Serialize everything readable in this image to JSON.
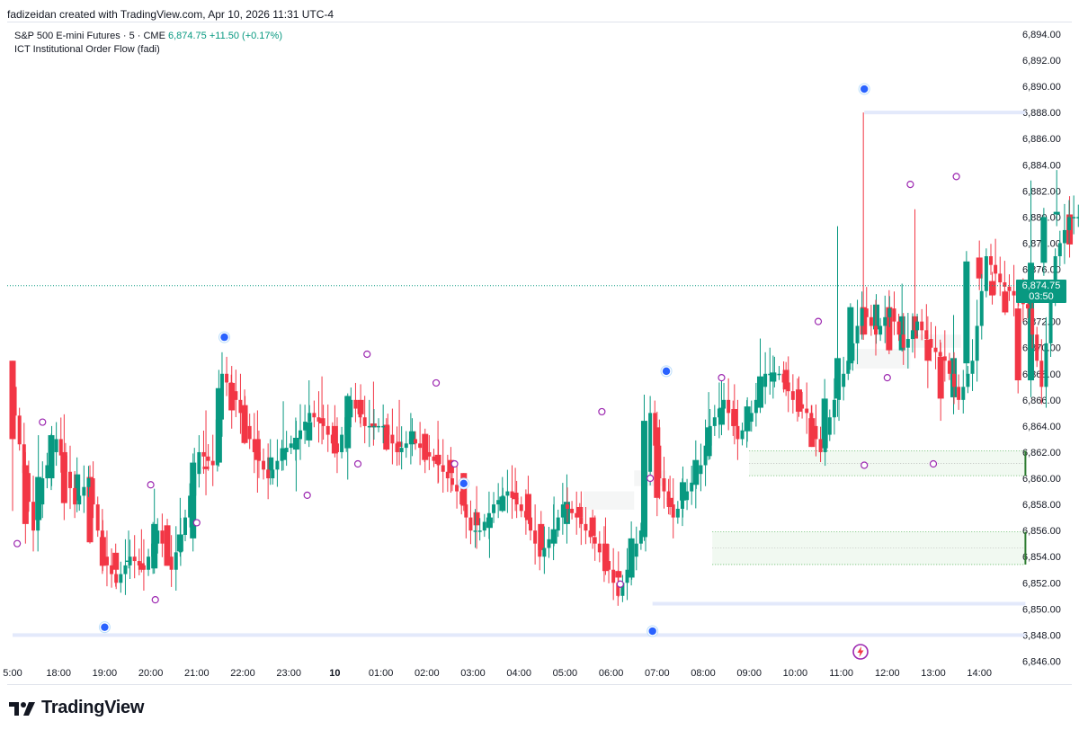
{
  "header": {
    "credit": "fadizeidan created with TradingView.com, Apr 10, 2026 11:31 UTC-4"
  },
  "legend": {
    "symbol": "S&P 500 E-mini Futures · 5 · CME",
    "last": "6,874.75",
    "change": "+11.50 (+0.17%)",
    "indicator": "ICT Institutional Order Flow (fadi)"
  },
  "price_tag": {
    "price": "6,874.75",
    "countdown": "03:50"
  },
  "brand": {
    "name": "TradingView"
  },
  "colors": {
    "up": "#089981",
    "down": "#f23645",
    "swing": "#9c27b0",
    "pivot": "#2962ff",
    "level": "#e3e9fb",
    "fvg": "#4caf50"
  },
  "icons": {
    "brand": "tradingview-logo-icon",
    "bolt": "lightning-icon"
  },
  "chart_data": {
    "type": "candlestick",
    "interval": "5",
    "y_ticks": [
      "6,894.00",
      "6,892.00",
      "6,890.00",
      "6,888.00",
      "6,886.00",
      "6,884.00",
      "6,882.00",
      "6,880.00",
      "6,878.00",
      "6,876.00",
      "6,874.00",
      "6,872.00",
      "6,870.00",
      "6,868.00",
      "6,866.00",
      "6,864.00",
      "6,862.00",
      "6,860.00",
      "6,858.00",
      "6,856.00",
      "6,854.00",
      "6,852.00",
      "6,850.00",
      "6,848.00",
      "6,846.00"
    ],
    "x_ticks": [
      "5:00",
      "18:00",
      "19:00",
      "20:00",
      "21:00",
      "22:00",
      "23:00",
      "10",
      "01:00",
      "02:00",
      "03:00",
      "04:00",
      "05:00",
      "06:00",
      "07:00",
      "08:00",
      "09:00",
      "10:00",
      "11:00",
      "12:00",
      "13:00",
      "14:00"
    ],
    "y_range": [
      6846,
      6895
    ],
    "last_price": 6874.75,
    "path": [
      [
        17.0,
        6867
      ],
      [
        17.5,
        6856
      ],
      [
        17.7,
        6860
      ],
      [
        18.0,
        6863
      ],
      [
        18.4,
        6858
      ],
      [
        18.7,
        6860
      ],
      [
        19.0,
        6854
      ],
      [
        19.3,
        6852
      ],
      [
        19.6,
        6854
      ],
      [
        19.9,
        6853
      ],
      [
        20.2,
        6856
      ],
      [
        20.5,
        6853
      ],
      [
        20.8,
        6857
      ],
      [
        21.1,
        6862
      ],
      [
        21.4,
        6861
      ],
      [
        21.6,
        6868
      ],
      [
        21.9,
        6866
      ],
      [
        22.1,
        6864
      ],
      [
        22.3,
        6862
      ],
      [
        22.6,
        6860
      ],
      [
        22.9,
        6862
      ],
      [
        23.2,
        6863
      ],
      [
        23.5,
        6865
      ],
      [
        23.8,
        6864
      ],
      [
        24.1,
        6862
      ],
      [
        24.4,
        6866
      ],
      [
        24.7,
        6864
      ],
      [
        25.1,
        6864
      ],
      [
        25.4,
        6862
      ],
      [
        25.7,
        6863
      ],
      [
        26.0,
        6862
      ],
      [
        26.3,
        6861
      ],
      [
        26.7,
        6859
      ],
      [
        27.0,
        6856
      ],
      [
        27.2,
        6856
      ],
      [
        27.5,
        6858
      ],
      [
        27.8,
        6859
      ],
      [
        28.2,
        6857
      ],
      [
        28.5,
        6854
      ],
      [
        28.8,
        6856
      ],
      [
        29.0,
        6858
      ],
      [
        29.3,
        6857
      ],
      [
        29.7,
        6855
      ],
      [
        30.0,
        6853
      ],
      [
        30.2,
        6851
      ],
      [
        30.5,
        6854
      ],
      [
        30.7,
        6856
      ],
      [
        30.9,
        6865
      ],
      [
        31.1,
        6860
      ],
      [
        31.4,
        6857
      ],
      [
        31.7,
        6859
      ],
      [
        32.0,
        6861
      ],
      [
        32.2,
        6864
      ],
      [
        32.5,
        6866
      ],
      [
        32.8,
        6863
      ],
      [
        33.1,
        6865
      ],
      [
        33.4,
        6868
      ],
      [
        33.7,
        6868
      ],
      [
        34.0,
        6866
      ],
      [
        34.3,
        6865
      ],
      [
        34.6,
        6862
      ],
      [
        34.9,
        6866
      ],
      [
        35.2,
        6869
      ],
      [
        35.5,
        6873
      ],
      [
        35.8,
        6871
      ],
      [
        36.1,
        6873
      ],
      [
        36.4,
        6870
      ],
      [
        36.7,
        6872
      ],
      [
        37.0,
        6870
      ],
      [
        37.3,
        6869
      ],
      [
        37.6,
        6866
      ],
      [
        37.9,
        6869
      ],
      [
        38.2,
        6877
      ],
      [
        38.5,
        6875
      ],
      [
        38.8,
        6874
      ],
      [
        39.1,
        6873
      ],
      [
        39.4,
        6867
      ],
      [
        39.7,
        6877
      ],
      [
        40.0,
        6880
      ],
      [
        40.3,
        6880
      ],
      [
        40.6,
        6875
      ]
    ],
    "candles": [
      [
        17.0,
        6869.0,
        6863.0,
        6857.5,
        6869.0
      ],
      [
        17.28,
        6861.0,
        6856.5,
        6855.0,
        6862.0
      ],
      [
        17.56,
        6856.8,
        6860.1,
        6856.1,
        6863.3
      ],
      [
        17.84,
        6860.0,
        6863.3,
        6859.1,
        6863.4
      ],
      [
        18.12,
        6862.0,
        6858.1,
        6856.8,
        6864.9
      ],
      [
        18.4,
        6858.3,
        6860.3,
        6857.4,
        6861.6
      ],
      [
        18.68,
        6860.1,
        6855.1,
        6855.0,
        6861.0
      ],
      [
        18.96,
        6855.5,
        6853.3,
        6852.9,
        6856.8
      ],
      [
        19.24,
        6854.3,
        6853.0,
        6851.7,
        6855.0
      ],
      [
        19.52,
        6853.6,
        6853.7,
        6853.1,
        6856.0
      ],
      [
        19.8,
        6853.5,
        6853.0,
        6852.8,
        6856.1
      ],
      [
        20.08,
        6853.1,
        6856.5,
        6852.7,
        6859.2
      ],
      [
        20.36,
        6856.4,
        6853.3,
        6853.3,
        6856.9
      ],
      [
        20.64,
        6854.4,
        6855.7,
        6854.0,
        6858.5
      ],
      [
        20.92,
        6855.4,
        6861.2,
        6854.4,
        6861.9
      ],
      [
        21.2,
        6860.9,
        6860.7,
        6858.7,
        6865.2
      ],
      [
        21.48,
        6861.2,
        6866.9,
        6860.9,
        6868.3
      ],
      [
        21.76,
        6867.3,
        6865.2,
        6863.8,
        6868.6
      ],
      [
        22.04,
        6865.6,
        6862.7,
        6862.6,
        6866.8
      ],
      [
        22.32,
        6863.0,
        6861.4,
        6858.9,
        6865.2
      ],
      [
        22.6,
        6860.6,
        6861.6,
        6859.5,
        6863.0
      ],
      [
        22.88,
        6861.4,
        6862.3,
        6860.6,
        6865.9
      ],
      [
        23.16,
        6862.2,
        6863.1,
        6859.0,
        6864.4
      ],
      [
        23.44,
        6862.9,
        6864.3,
        6862.4,
        6867.5
      ],
      [
        23.72,
        6864.6,
        6864.2,
        6862.6,
        6867.8
      ],
      [
        24.0,
        6864.0,
        6861.9,
        6861.6,
        6865.6
      ],
      [
        24.28,
        6862.3,
        6866.3,
        6859.9,
        6866.5
      ],
      [
        24.56,
        6866.0,
        6864.9,
        6863.9,
        6867.2
      ],
      [
        24.84,
        6864.2,
        6863.9,
        6862.5,
        6867.4
      ],
      [
        25.12,
        6864.1,
        6862.2,
        6862.1,
        6864.6
      ],
      [
        25.4,
        6862.8,
        6862.4,
        6861.0,
        6866.0
      ],
      [
        25.68,
        6862.6,
        6863.6,
        6861.7,
        6864.6
      ],
      [
        25.96,
        6863.4,
        6861.4,
        6860.4,
        6863.8
      ],
      [
        26.24,
        6861.8,
        6861.1,
        6859.6,
        6864.4
      ],
      [
        26.52,
        6861.4,
        6860.4,
        6858.9,
        6862.4
      ],
      [
        26.8,
        6860.4,
        6857.9,
        6857.5,
        6860.4
      ],
      [
        27.08,
        6857.4,
        6856.4,
        6854.6,
        6859.4
      ],
      [
        27.36,
        6856.2,
        6857.0,
        6853.9,
        6857.1
      ],
      [
        27.64,
        6857.5,
        6858.6,
        6857.4,
        6860.1
      ],
      [
        27.92,
        6858.9,
        6858.4,
        6857.5,
        6860.8
      ],
      [
        28.2,
        6858.8,
        6856.8,
        6856.5,
        6860.2
      ],
      [
        28.48,
        6856.5,
        6854.5,
        6854.1,
        6857.5
      ],
      [
        28.76,
        6855.0,
        6856.1,
        6854.8,
        6858.6
      ],
      [
        29.04,
        6856.5,
        6858.2,
        6855.0,
        6860.3
      ],
      [
        29.32,
        6857.8,
        6857.0,
        6856.2,
        6858.1
      ],
      [
        29.6,
        6857.0,
        6855.6,
        6854.6,
        6857.6
      ],
      [
        29.88,
        6855.0,
        6852.9,
        6852.6,
        6857.0
      ],
      [
        30.16,
        6852.9,
        6852.4,
        6850.9,
        6854.4
      ],
      [
        30.44,
        6852.4,
        6855.4,
        6851.8,
        6856.7
      ],
      [
        30.72,
        6855.5,
        6864.4,
        6855.2,
        6866.4
      ],
      [
        31.0,
        6863.9,
        6858.5,
        6857.1,
        6865.1
      ],
      [
        31.28,
        6858.5,
        6857.8,
        6857.2,
        6860.2
      ],
      [
        31.56,
        6858.3,
        6859.7,
        6857.0,
        6860.9
      ],
      [
        31.84,
        6859.5,
        6861.4,
        6857.7,
        6862.9
      ],
      [
        32.12,
        6861.7,
        6863.9,
        6861.4,
        6866.6
      ],
      [
        32.4,
        6864.1,
        6865.4,
        6863.3,
        6867.6
      ],
      [
        32.68,
        6865.3,
        6864.0,
        6862.6,
        6867.2
      ],
      [
        32.96,
        6863.6,
        6865.5,
        6862.8,
        6866.2
      ],
      [
        33.24,
        6865.4,
        6867.8,
        6865.0,
        6870.7
      ],
      [
        33.52,
        6867.4,
        6868.1,
        6866.1,
        6869.4
      ],
      [
        33.8,
        6868.3,
        6866.8,
        6866.3,
        6868.9
      ],
      [
        34.08,
        6866.8,
        6865.1,
        6864.7,
        6867.8
      ],
      [
        34.36,
        6864.6,
        6862.4,
        6862.4,
        6865.6
      ],
      [
        34.64,
        6862.3,
        6866.1,
        6862.2,
        6867.6
      ],
      [
        34.92,
        6866.1,
        6869.2,
        6864.7,
        6879.3
      ],
      [
        35.2,
        6868.8,
        6873.1,
        6868.3,
        6873.4
      ],
      [
        35.48,
        6873.1,
        6871.0,
        6870.6,
        6888.0
      ],
      [
        35.76,
        6871.4,
        6873.3,
        6870.3,
        6874.1
      ],
      [
        36.04,
        6873.1,
        6869.8,
        6869.5,
        6874.4
      ],
      [
        36.32,
        6869.8,
        6872.4,
        6869.7,
        6874.9
      ],
      [
        36.6,
        6872.4,
        6870.7,
        6869.2,
        6880.6
      ],
      [
        36.88,
        6870.6,
        6869.0,
        6866.9,
        6872.4
      ],
      [
        37.16,
        6869.3,
        6866.1,
        6864.4,
        6870.4
      ],
      [
        37.44,
        6866.2,
        6869.2,
        6864.9,
        6872.5
      ],
      [
        37.72,
        6868.8,
        6876.6,
        6867.8,
        6877.4
      ],
      [
        38.0,
        6876.9,
        6875.3,
        6874.4,
        6878.2
      ],
      [
        38.28,
        6875.1,
        6874.0,
        6873.3,
        6875.8
      ],
      [
        38.56,
        6874.3,
        6872.7,
        6872.5,
        6874.4
      ],
      [
        38.84,
        6873.0,
        6867.5,
        6866.5,
        6873.6
      ],
      [
        39.12,
        6867.5,
        6876.5,
        6866.2,
        6882.8
      ],
      [
        39.4,
        6876.5,
        6880.0,
        6875.5,
        6880.7
      ],
      [
        39.68,
        6880.2,
        6880.4,
        6879.3,
        6883.6
      ],
      [
        39.96,
        6880.2,
        6877.9,
        6876.9,
        6881.6
      ],
      [
        40.24,
        6877.7,
        6874.9,
        6873.9,
        6878.6
      ]
    ],
    "pivots_major": [
      {
        "t": 19.0,
        "price": 6848.6
      },
      {
        "t": 21.6,
        "price": 6870.8
      },
      {
        "t": 26.8,
        "price": 6859.6
      },
      {
        "t": 30.9,
        "price": 6848.3
      },
      {
        "t": 31.2,
        "price": 6868.2
      },
      {
        "t": 35.5,
        "price": 6889.8
      }
    ],
    "swing_points": [
      {
        "t": 17.1,
        "price": 6855.0
      },
      {
        "t": 17.65,
        "price": 6864.3
      },
      {
        "t": 20.0,
        "price": 6859.5
      },
      {
        "t": 20.1,
        "price": 6850.7
      },
      {
        "t": 21.0,
        "price": 6856.6
      },
      {
        "t": 23.4,
        "price": 6858.7
      },
      {
        "t": 24.5,
        "price": 6861.1
      },
      {
        "t": 24.7,
        "price": 6869.5
      },
      {
        "t": 26.2,
        "price": 6867.3
      },
      {
        "t": 26.6,
        "price": 6861.1
      },
      {
        "t": 29.8,
        "price": 6865.1
      },
      {
        "t": 30.2,
        "price": 6851.9
      },
      {
        "t": 30.85,
        "price": 6860.0
      },
      {
        "t": 32.4,
        "price": 6867.7
      },
      {
        "t": 34.5,
        "price": 6872.0
      },
      {
        "t": 35.5,
        "price": 6861.0
      },
      {
        "t": 36.0,
        "price": 6867.7
      },
      {
        "t": 36.5,
        "price": 6882.5
      },
      {
        "t": 37.0,
        "price": 6861.1
      },
      {
        "t": 37.5,
        "price": 6883.1
      }
    ],
    "levels": [
      {
        "t0": 35.5,
        "t1": 39.0,
        "price": 6888.0
      },
      {
        "t0": 17.0,
        "t1": 39.0,
        "price": 6848.0
      },
      {
        "t0": 30.9,
        "t1": 39.0,
        "price": 6850.4
      }
    ],
    "fvg_zones": [
      {
        "t0": 33.0,
        "t1": 39.0,
        "top": 6862.1,
        "bottom": 6860.2
      },
      {
        "t0": 32.2,
        "t1": 39.0,
        "top": 6855.9,
        "bottom": 6853.4
      }
    ],
    "shaded_zones": [
      {
        "t0": 30.5,
        "t1": 31.2,
        "top": 6860.6,
        "bottom": 6859.4
      },
      {
        "t0": 29.4,
        "t1": 30.5,
        "top": 6859.0,
        "bottom": 6857.6
      },
      {
        "t0": 35.3,
        "t1": 36.5,
        "top": 6869.9,
        "bottom": 6868.4
      },
      {
        "t0": 36.5,
        "t1": 37.6,
        "top": 6871.0,
        "bottom": 6870.0
      }
    ]
  }
}
